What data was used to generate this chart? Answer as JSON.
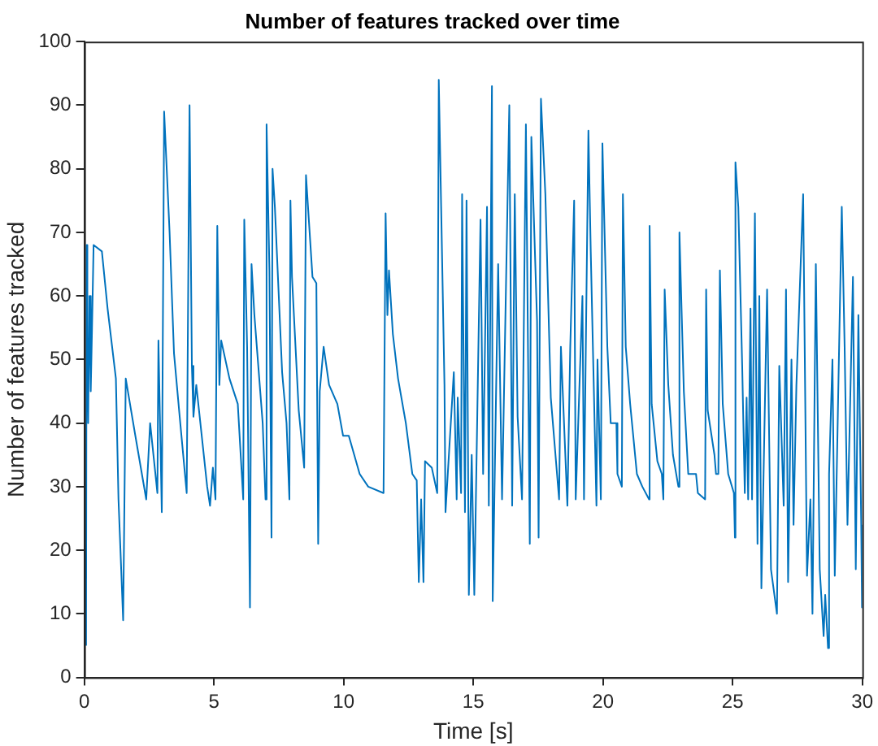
{
  "chart_data": {
    "type": "line",
    "title": "Number of features tracked over time",
    "xlabel": "Time [s]",
    "ylabel": "Number of features tracked",
    "xlim": [
      0,
      30
    ],
    "ylim": [
      0,
      100
    ],
    "xticks": [
      0,
      5,
      10,
      15,
      20,
      25,
      30
    ],
    "yticks": [
      0,
      10,
      20,
      30,
      40,
      50,
      60,
      70,
      80,
      90,
      100
    ],
    "grid": false,
    "legend": false,
    "marker": "none",
    "line_style": "solid",
    "series": [
      {
        "color": "#0072bd",
        "x": [
          0.07,
          0.09,
          0.12,
          0.15,
          0.2,
          0.25,
          0.3,
          0.36,
          0.68,
          0.9,
          1.22,
          1.32,
          1.5,
          1.6,
          1.97,
          2.39,
          2.54,
          2.82,
          2.86,
          2.99,
          3.08,
          3.29,
          3.46,
          3.68,
          3.95,
          4.06,
          4.15,
          4.21,
          4.32,
          4.74,
          4.85,
          4.96,
          5.06,
          5.13,
          5.21,
          5.28,
          5.6,
          5.92,
          6.13,
          6.17,
          6.28,
          6.39,
          6.45,
          6.56,
          6.88,
          6.99,
          7.03,
          7.14,
          7.22,
          7.26,
          7.35,
          7.63,
          7.8,
          7.91,
          7.95,
          8.01,
          8.27,
          8.48,
          8.55,
          8.8,
          8.95,
          9.02,
          9.08,
          9.23,
          9.44,
          9.76,
          9.98,
          10.2,
          10.62,
          10.95,
          11.54,
          11.62,
          11.69,
          11.75,
          11.9,
          12.1,
          12.4,
          12.65,
          12.82,
          12.9,
          12.99,
          13.08,
          13.14,
          13.4,
          13.61,
          13.67,
          13.89,
          13.93,
          14.25,
          14.36,
          14.4,
          14.53,
          14.57,
          14.68,
          14.74,
          14.83,
          14.94,
          15.04,
          15.28,
          15.38,
          15.53,
          15.6,
          15.72,
          15.75,
          15.78,
          15.96,
          16.11,
          16.39,
          16.5,
          16.6,
          16.71,
          16.88,
          17.03,
          17.18,
          17.24,
          17.46,
          17.52,
          17.61,
          17.78,
          17.99,
          18.31,
          18.38,
          18.63,
          18.74,
          18.89,
          18.95,
          19.21,
          19.27,
          19.44,
          19.53,
          19.75,
          19.79,
          19.92,
          19.98,
          20.17,
          20.3,
          20.52,
          20.56,
          20.73,
          20.77,
          20.88,
          21.05,
          21.31,
          21.52,
          21.78,
          21.8,
          21.88,
          22.1,
          22.27,
          22.33,
          22.38,
          22.52,
          22.7,
          22.91,
          22.95,
          23.12,
          23.29,
          23.59,
          23.66,
          23.94,
          23.98,
          24.04,
          24.3,
          24.36,
          24.45,
          24.51,
          24.62,
          24.83,
          25.05,
          25.09,
          25.11,
          25.22,
          25.37,
          25.47,
          25.54,
          25.6,
          25.69,
          25.75,
          25.86,
          25.96,
          26.03,
          26.11,
          26.33,
          26.48,
          26.71,
          26.8,
          26.97,
          27.06,
          27.14,
          27.27,
          27.35,
          27.46,
          27.72,
          27.87,
          28.0,
          28.08,
          28.21,
          28.36,
          28.51,
          28.57,
          28.68,
          28.72,
          28.85,
          28.94,
          29.21,
          29.32,
          29.43,
          29.64,
          29.75,
          29.85,
          29.96,
          29.99,
          30.0
        ],
        "values": [
          5,
          68,
          50,
          40,
          60,
          45,
          55,
          68,
          67,
          58,
          47,
          28,
          9,
          47,
          38,
          28,
          40,
          29,
          53,
          26,
          89,
          70,
          51,
          41,
          29,
          90,
          49,
          41,
          46,
          30,
          27,
          33,
          28,
          71,
          46,
          53,
          47,
          43,
          28,
          72,
          52,
          11,
          65,
          57,
          40,
          28,
          87,
          64,
          22,
          80,
          74,
          48,
          40,
          28,
          75,
          63,
          42,
          33,
          79,
          63,
          62,
          21,
          45,
          52,
          46,
          43,
          38,
          38,
          32,
          30,
          29,
          73,
          57,
          64,
          54,
          47,
          40,
          32,
          31,
          15,
          28,
          15,
          34,
          33,
          29,
          94,
          46,
          26,
          48,
          28,
          44,
          29,
          76,
          26,
          75,
          13,
          35,
          13,
          72,
          32,
          74,
          27,
          93,
          12,
          12,
          65,
          28,
          90,
          27,
          76,
          41,
          28,
          87,
          21,
          85,
          56,
          22,
          91,
          76,
          44,
          28,
          52,
          27,
          52,
          75,
          28,
          60,
          28,
          86,
          67,
          27,
          50,
          28,
          84,
          52,
          40,
          40,
          32,
          30,
          76,
          52,
          43,
          32,
          30,
          28,
          71,
          43,
          34,
          32,
          28,
          61,
          46,
          35,
          30,
          70,
          45,
          32,
          32,
          29,
          28,
          61,
          42,
          35,
          32,
          32,
          64,
          43,
          32,
          29,
          22,
          81,
          74,
          49,
          29,
          44,
          28,
          58,
          28,
          73,
          21,
          60,
          14,
          61,
          17,
          10,
          49,
          27,
          61,
          15,
          50,
          24,
          46,
          76,
          16,
          28,
          10,
          65,
          17,
          6.5,
          13,
          4.6,
          32,
          50,
          16,
          74,
          52,
          24,
          63,
          17,
          57,
          24,
          11,
          24
        ]
      }
    ]
  }
}
